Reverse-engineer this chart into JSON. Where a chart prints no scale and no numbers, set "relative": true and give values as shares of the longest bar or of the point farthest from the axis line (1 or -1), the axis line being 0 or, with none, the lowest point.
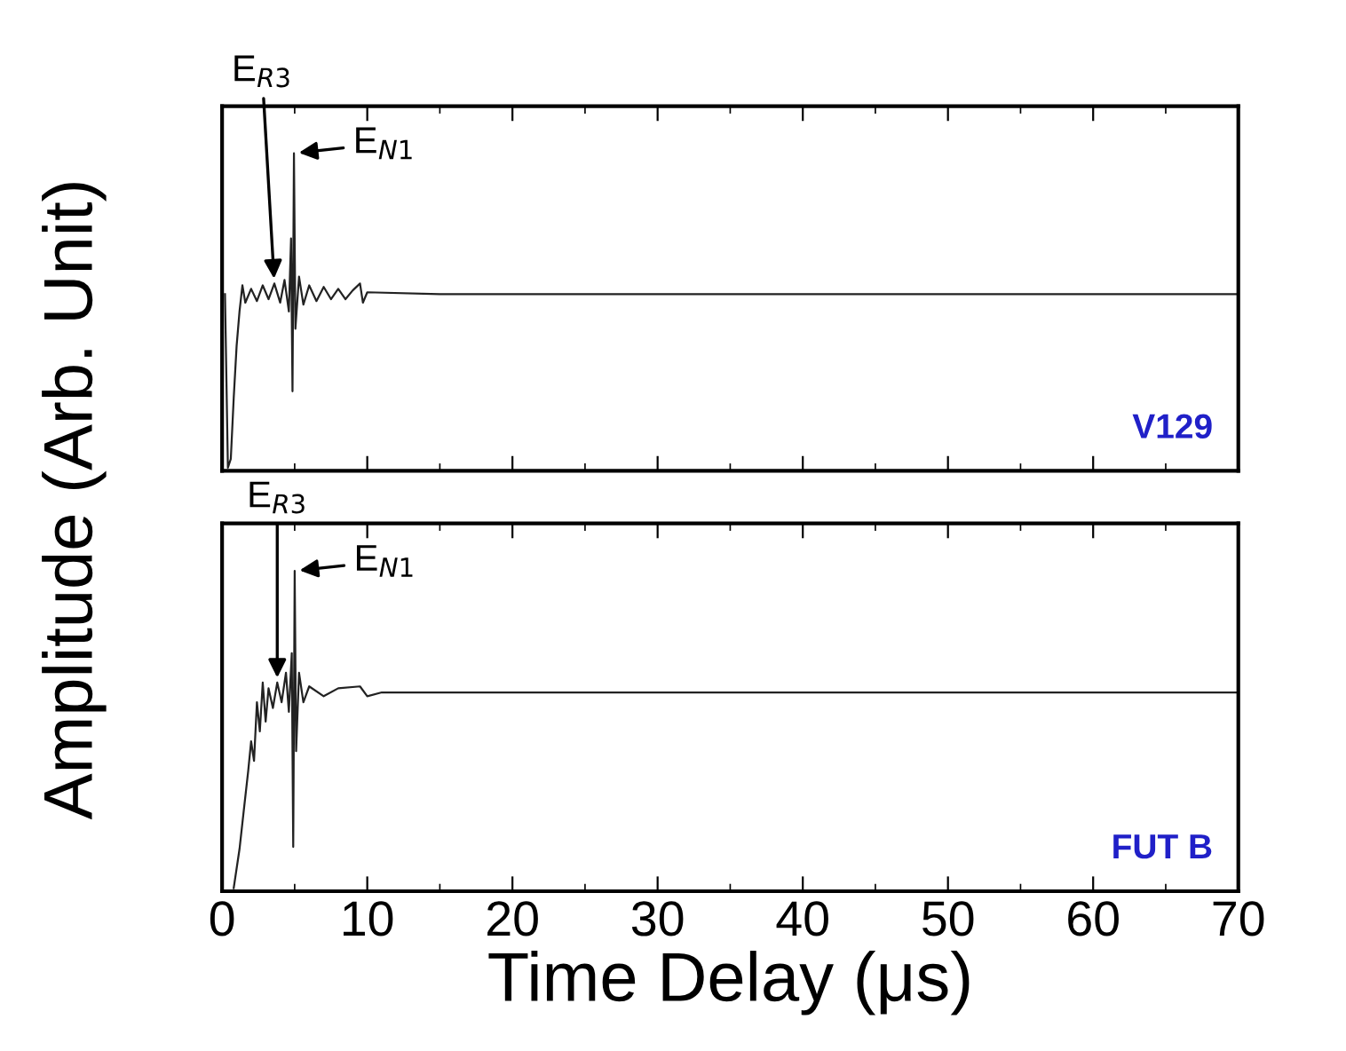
{
  "chart_data": [
    {
      "type": "line",
      "relative": true,
      "ylabel": "Amplitude (Arb. Unit)",
      "xlim": [
        0,
        70
      ],
      "xticks": [
        0,
        10,
        20,
        30,
        40,
        50,
        60,
        70
      ],
      "tick_labels": false,
      "grid": false,
      "legend": false,
      "series": [
        {
          "color": "#222222",
          "x": [
            0.2,
            0.4,
            0.6,
            0.8,
            1.0,
            1.2,
            1.4,
            1.6,
            2.0,
            2.4,
            2.8,
            3.2,
            3.6,
            4.0,
            4.3,
            4.6,
            4.75,
            4.85,
            4.95,
            5.05,
            5.3,
            5.6,
            6.0,
            6.5,
            7.0,
            7.5,
            8.0,
            8.5,
            9.0,
            9.5,
            9.7,
            10.0,
            15,
            20,
            30,
            40,
            50,
            60,
            70
          ],
          "values": [
            0.552,
            0,
            0.028,
            0.221,
            0.387,
            0.497,
            0.58,
            0.525,
            0.569,
            0.53,
            0.58,
            0.536,
            0.586,
            0.525,
            0.597,
            0.497,
            0.729,
            0.243,
            1,
            0.442,
            0.608,
            0.519,
            0.58,
            0.53,
            0.575,
            0.536,
            0.569,
            0.536,
            0.564,
            0.586,
            0.525,
            0.558,
            0.552,
            0.552,
            0.552,
            0.552,
            0.552,
            0.552,
            0.552
          ]
        }
      ],
      "annotations": [
        {
          "text": "E$_{R3}$",
          "x": 3.6,
          "y": 0.586
        },
        {
          "text": "E$_{N1}$",
          "x": 4.95,
          "y": 1
        },
        "V129"
      ]
    },
    {
      "type": "line",
      "relative": true,
      "xlabel": "Time Delay (μs)",
      "xlim": [
        0,
        70
      ],
      "xticks": [
        0,
        10,
        20,
        30,
        40,
        50,
        60,
        70
      ],
      "tick_labels": "x",
      "grid": false,
      "legend": false,
      "series": [
        {
          "color": "#222222",
          "x": [
            0.8,
            1.2,
            1.5,
            1.8,
            2.0,
            2.2,
            2.4,
            2.6,
            2.8,
            3.0,
            3.2,
            3.5,
            3.8,
            4.1,
            4.4,
            4.6,
            4.8,
            4.9,
            5.0,
            5.1,
            5.3,
            5.6,
            6.0,
            7.0,
            8.0,
            9.5,
            10.0,
            11,
            20,
            30,
            40,
            50,
            60,
            70
          ],
          "values": [
            0,
            0.123,
            0.247,
            0.37,
            0.463,
            0.401,
            0.586,
            0.494,
            0.648,
            0.525,
            0.63,
            0.568,
            0.648,
            0.586,
            0.679,
            0.556,
            0.741,
            0.13,
            1,
            0.432,
            0.679,
            0.586,
            0.636,
            0.605,
            0.63,
            0.636,
            0.605,
            0.617,
            0.617,
            0.617,
            0.617,
            0.617,
            0.617,
            0.617
          ]
        }
      ],
      "annotations": [
        {
          "text": "E$_{R3}$",
          "x": 3.8,
          "y": 0.648
        },
        {
          "text": "E$_{N1}$",
          "x": 5.0,
          "y": 1
        },
        "FUT B"
      ]
    }
  ]
}
